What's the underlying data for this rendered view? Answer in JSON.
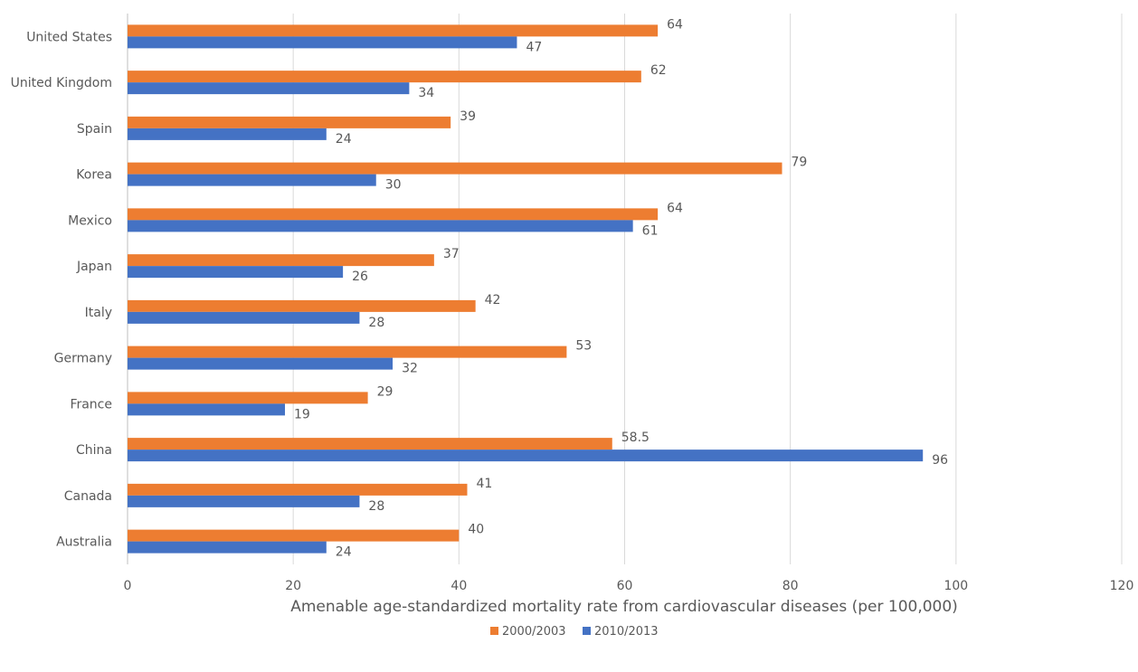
{
  "chart_data": {
    "type": "bar",
    "orientation": "horizontal",
    "title": "",
    "xlabel": "Amenable age-standardized mortality rate from cardiovascular diseases (per 100,000)",
    "ylabel": "",
    "xlim": [
      0,
      120
    ],
    "xticks": [
      "0",
      "20",
      "40",
      "60",
      "80",
      "100",
      "120"
    ],
    "grid": true,
    "legend_position": "bottom",
    "categories": [
      "United States",
      "United Kingdom",
      "Spain",
      "Korea",
      "Mexico",
      "Japan",
      "Italy",
      "Germany",
      "France",
      "China",
      "Canada",
      "Australia"
    ],
    "series": [
      {
        "name": "2000/2003",
        "color": "#ED7D31",
        "values": [
          64,
          62,
          39,
          79,
          64,
          37,
          42,
          53,
          29,
          58.5,
          41,
          40
        ],
        "labels": [
          "64",
          "62",
          "39",
          "79",
          "64",
          "37",
          "42",
          "53",
          "29",
          "58.5",
          "41",
          "40"
        ]
      },
      {
        "name": "2010/2013",
        "color": "#4472C4",
        "values": [
          47,
          34,
          24,
          30,
          61,
          26,
          28,
          32,
          19,
          96,
          28,
          24
        ],
        "labels": [
          "47",
          "34",
          "24",
          "30",
          "61",
          "26",
          "28",
          "32",
          "19",
          "96",
          "28",
          "24"
        ]
      }
    ]
  }
}
